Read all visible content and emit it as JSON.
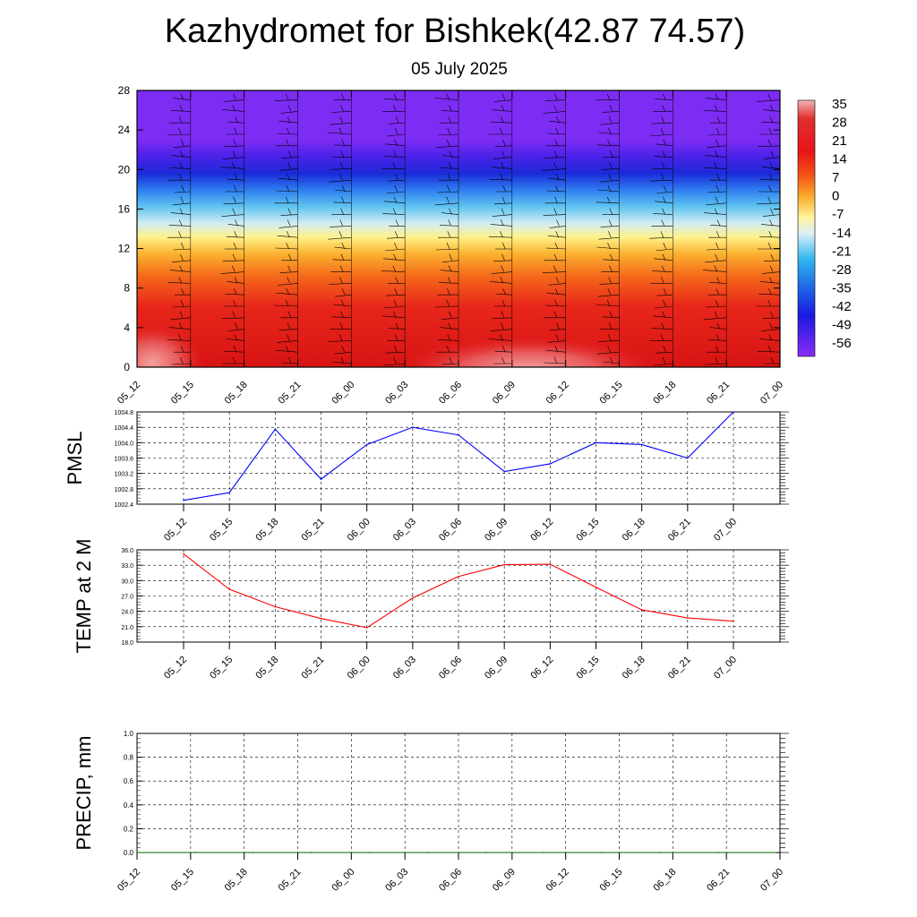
{
  "title": "Kazhydromet for Bishkek(42.87 74.57)",
  "subtitle": "05 July 2025",
  "chart_data": [
    {
      "type": "heatmap",
      "x_labels": [
        "05_12",
        "05_15",
        "05_18",
        "05_21",
        "06_00",
        "06_03",
        "06_06",
        "06_09",
        "06_12",
        "06_15",
        "06_18",
        "06_21",
        "07_00"
      ],
      "ylim": [
        0,
        28
      ],
      "y_ticks": [
        "0",
        "4",
        "8",
        "12",
        "16",
        "20",
        "24",
        "28"
      ],
      "colorbar_labels": [
        "35",
        "28",
        "21",
        "14",
        "7",
        "0",
        "-7",
        "-14",
        "-21",
        "-28",
        "-35",
        "-42",
        "-49",
        "-56"
      ],
      "colors": {
        "warm": "#e0161a",
        "mid": "#fff28a",
        "cold": "#7d2cf4"
      }
    },
    {
      "type": "line",
      "ylabel": "PMSL",
      "x": [
        "05_12",
        "05_15",
        "05_18",
        "05_21",
        "06_00",
        "06_03",
        "06_06",
        "06_09",
        "06_12",
        "06_15",
        "06_18",
        "06_21",
        "07_00"
      ],
      "y": [
        1002.5,
        1002.7,
        1004.35,
        1003.05,
        1003.95,
        1004.4,
        1004.2,
        1003.25,
        1003.45,
        1004.0,
        1003.95,
        1003.6,
        1004.8
      ],
      "ylim": [
        1002.4,
        1004.8
      ],
      "y_ticks": [
        "1002.4",
        "1002.8",
        "1003.2",
        "1003.6",
        "1004.0",
        "1004.4",
        "1004.8"
      ],
      "color": "#0000ff"
    },
    {
      "type": "line",
      "ylabel": "TEMP at 2 M",
      "x": [
        "05_12",
        "05_15",
        "05_18",
        "05_21",
        "06_00",
        "06_03",
        "06_06",
        "06_09",
        "06_12",
        "06_15",
        "06_18",
        "06_21",
        "07_00"
      ],
      "y": [
        35.2,
        28.3,
        24.9,
        22.6,
        20.8,
        26.6,
        30.8,
        33.1,
        33.2,
        28.7,
        24.3,
        22.7,
        22.1
      ],
      "ylim": [
        18,
        36
      ],
      "y_ticks": [
        "18.0",
        "21.0",
        "24.0",
        "27.0",
        "30.0",
        "33.0",
        "36.0"
      ],
      "color": "#ff0000"
    },
    {
      "type": "line",
      "ylabel": "PRECIP, mm",
      "x_labels": [
        "05_12",
        "05_15",
        "05_18",
        "05_21",
        "06_00",
        "06_03",
        "06_06",
        "06_09",
        "06_12",
        "06_15",
        "06_18",
        "06_21",
        "07_00"
      ],
      "y": [
        0,
        0,
        0,
        0,
        0,
        0,
        0,
        0,
        0,
        0,
        0,
        0
      ],
      "ylim": [
        0,
        1
      ],
      "y_ticks": [
        "0.0",
        "0.2",
        "0.4",
        "0.6",
        "0.8",
        "1.0"
      ],
      "color": "#006400"
    }
  ]
}
